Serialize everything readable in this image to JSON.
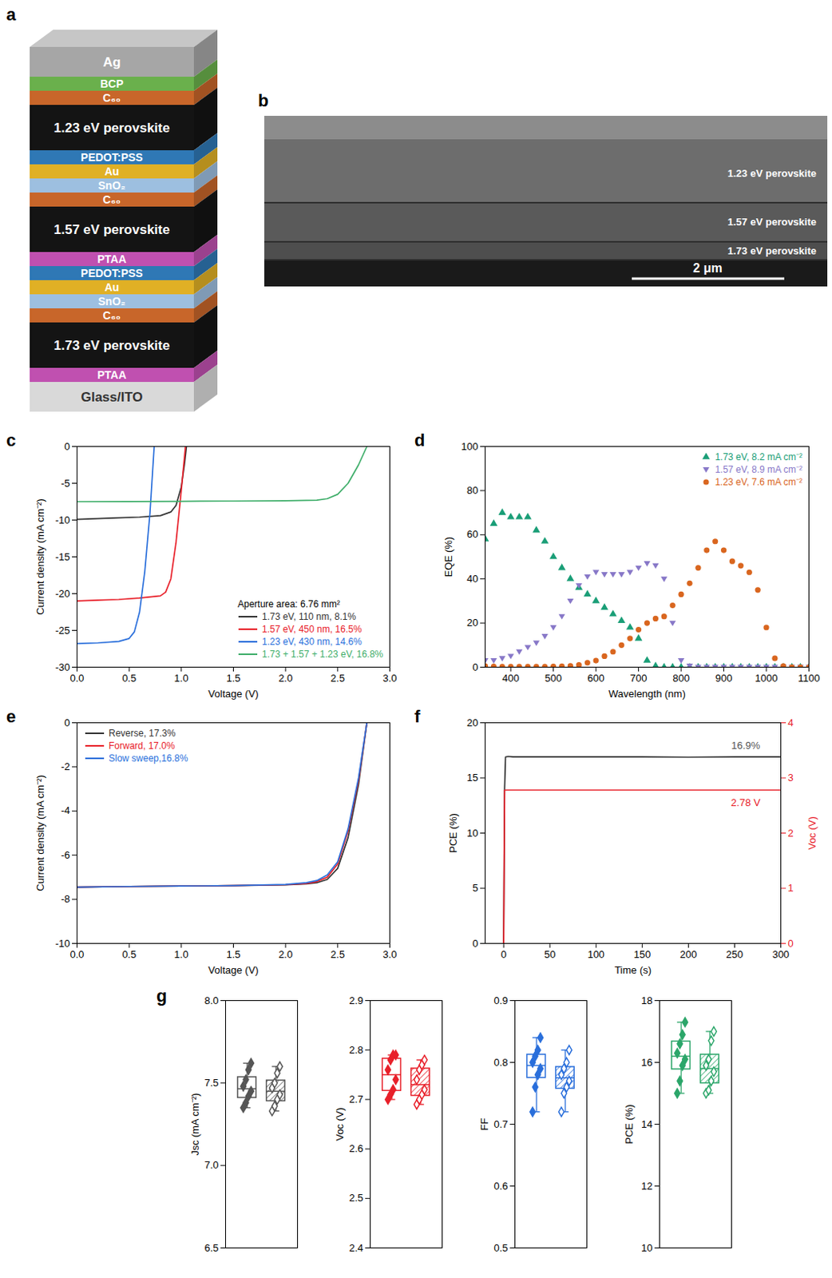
{
  "diagram_a": {
    "letter": "a",
    "layers": [
      {
        "label": "Ag",
        "color": "#a6a6a6"
      },
      {
        "label": "BCP",
        "color": "#6ab04c"
      },
      {
        "label": "C₆₀",
        "color": "#c8662a"
      },
      {
        "label": "1.23 eV perovskite",
        "color": "#141414"
      },
      {
        "label": "PEDOT:PSS",
        "color": "#2f78b5"
      },
      {
        "label": "Au",
        "color": "#e0b025"
      },
      {
        "label": "SnO₂",
        "color": "#9dbfe0"
      },
      {
        "label": "C₆₀",
        "color": "#c8662a"
      },
      {
        "label": "1.57 eV perovskite",
        "color": "#141414"
      },
      {
        "label": "PTAA",
        "color": "#c050b0"
      },
      {
        "label": "PEDOT:PSS",
        "color": "#2f78b5"
      },
      {
        "label": "Au",
        "color": "#e0b025"
      },
      {
        "label": "SnO₂",
        "color": "#9dbfe0"
      },
      {
        "label": "C₆₀",
        "color": "#c8662a"
      },
      {
        "label": "1.73 eV perovskite",
        "color": "#141414"
      },
      {
        "label": "PTAA",
        "color": "#c050b0"
      },
      {
        "label": "Glass/ITO",
        "color": "#d9d9d9"
      }
    ]
  },
  "image_b": {
    "letter": "b",
    "labels": [
      "1.23 eV perovskite",
      "1.57 eV perovskite",
      "1.73 eV perovskite"
    ],
    "scale_bar": "2 μm"
  },
  "chart_data": [
    {
      "letter": "c",
      "type": "line",
      "xlabel": "Voltage (V)",
      "ylabel": "Current density (mA cm⁻²)",
      "xlim": [
        0,
        3
      ],
      "xticks": [
        {
          "value": 0,
          "label": "0.0"
        },
        0.5,
        {
          "value": 1,
          "label": "1.0"
        },
        1.5,
        {
          "value": 2,
          "label": "2.0"
        },
        2.5,
        {
          "value": 3,
          "label": "3.0"
        }
      ],
      "ylim": [
        -30,
        0
      ],
      "yticks": [
        -30,
        -25,
        -20,
        -15,
        -10,
        -5,
        0
      ],
      "legend": "bottom-right",
      "legend_title": "Aperture area: 6.76 mm²",
      "series": [
        {
          "name": "1.73 eV, 110 nm, 8.1%",
          "color": "#333333",
          "x": [
            0,
            0.2,
            0.4,
            0.6,
            0.8,
            0.9,
            0.95,
            1.0,
            1.03,
            1.05
          ],
          "values": [
            -9.9,
            -9.8,
            -9.7,
            -9.6,
            -9.4,
            -8.9,
            -8.0,
            -5.5,
            -2.5,
            0
          ]
        },
        {
          "name": "1.57 eV, 450 nm, 16.5%",
          "color": "#e8202a",
          "x": [
            0,
            0.2,
            0.4,
            0.6,
            0.8,
            0.85,
            0.9,
            0.95,
            1.0,
            1.04
          ],
          "values": [
            -21.0,
            -20.9,
            -20.8,
            -20.6,
            -20.3,
            -19.8,
            -18.0,
            -13.0,
            -6.0,
            0
          ]
        },
        {
          "name": "1.23 eV, 430 nm, 14.6%",
          "color": "#2a6fdb",
          "x": [
            0,
            0.2,
            0.4,
            0.5,
            0.55,
            0.6,
            0.65,
            0.7,
            0.74
          ],
          "values": [
            -26.8,
            -26.7,
            -26.5,
            -26.1,
            -25.2,
            -22.5,
            -17.0,
            -9.0,
            0
          ]
        },
        {
          "name": "1.73 + 1.57 + 1.23 eV, 16.8%",
          "color": "#3fae6a",
          "x": [
            0,
            0.5,
            1,
            1.5,
            2,
            2.3,
            2.4,
            2.5,
            2.6,
            2.7,
            2.78
          ],
          "values": [
            -7.5,
            -7.48,
            -7.45,
            -7.42,
            -7.38,
            -7.3,
            -7.1,
            -6.5,
            -5.0,
            -2.5,
            0
          ]
        }
      ]
    },
    {
      "letter": "d",
      "type": "scatter",
      "xlabel": "Wavelength (nm)",
      "ylabel": "EQE (%)",
      "xlim": [
        340,
        1100
      ],
      "xticks": [
        400,
        500,
        600,
        700,
        800,
        900,
        1000,
        1100
      ],
      "ylim": [
        0,
        100
      ],
      "yticks": [
        0,
        20,
        40,
        60,
        80,
        100
      ],
      "legend": "top-right",
      "series": [
        {
          "name": "1.73 eV, 8.2 mA cm⁻²",
          "color": "#1a9e77",
          "marker": "triangle-up",
          "x": [
            340,
            360,
            380,
            400,
            420,
            440,
            460,
            480,
            500,
            520,
            540,
            560,
            580,
            600,
            620,
            640,
            660,
            680,
            700,
            720,
            740,
            760,
            780,
            800,
            820,
            840,
            860,
            880,
            900,
            920,
            940,
            960,
            980,
            1000,
            1020,
            1040,
            1060,
            1080,
            1100
          ],
          "values": [
            58,
            65,
            70,
            68,
            68,
            68,
            62,
            57,
            50,
            45,
            40,
            36,
            33,
            30,
            27,
            24,
            21,
            18,
            13,
            3,
            0.5,
            0,
            0,
            0,
            0,
            0,
            0,
            0,
            0,
            0,
            0,
            0,
            0,
            0,
            0,
            0,
            0,
            0,
            0
          ]
        },
        {
          "name": "1.57 eV, 8.9 mA cm⁻²",
          "color": "#8878c8",
          "marker": "triangle-down",
          "x": [
            340,
            360,
            380,
            400,
            420,
            440,
            460,
            480,
            500,
            520,
            540,
            560,
            580,
            600,
            620,
            640,
            660,
            680,
            700,
            720,
            740,
            760,
            780,
            800,
            820,
            840,
            860,
            880,
            900,
            920,
            940,
            960,
            980,
            1000,
            1020,
            1040,
            1060,
            1080,
            1100
          ],
          "values": [
            3,
            3,
            4,
            5,
            7,
            9,
            11,
            14,
            18,
            23,
            30,
            37,
            41,
            43,
            42,
            42,
            42,
            43,
            45,
            47,
            46,
            40,
            20,
            3,
            0.5,
            0,
            0,
            0,
            0,
            0,
            0,
            0,
            0,
            0,
            0,
            0,
            0,
            0,
            0
          ]
        },
        {
          "name": "1.23 eV, 7.6 mA cm⁻²",
          "color": "#d9661f",
          "marker": "circle",
          "x": [
            340,
            360,
            380,
            400,
            420,
            440,
            460,
            480,
            500,
            520,
            540,
            560,
            580,
            600,
            620,
            640,
            660,
            680,
            700,
            720,
            740,
            760,
            780,
            800,
            820,
            840,
            860,
            880,
            900,
            920,
            940,
            960,
            980,
            1000,
            1020,
            1040,
            1060,
            1080,
            1100
          ],
          "values": [
            0.5,
            0.3,
            0.2,
            0.2,
            0.2,
            0.2,
            0.2,
            0.2,
            0.3,
            0.4,
            0.6,
            1,
            2,
            3,
            5,
            7,
            10,
            13,
            17,
            20,
            22,
            23,
            28,
            33,
            38,
            45,
            53,
            57,
            53,
            48,
            46,
            43,
            35,
            18,
            4,
            0.5,
            0,
            0,
            0
          ]
        }
      ]
    },
    {
      "letter": "e",
      "type": "line",
      "xlabel": "Voltage (V)",
      "ylabel": "Current density (mA cm⁻²)",
      "xlim": [
        0,
        3
      ],
      "xticks": [
        {
          "value": 0,
          "label": "0.0"
        },
        0.5,
        {
          "value": 1,
          "label": "1.0"
        },
        1.5,
        {
          "value": 2,
          "label": "2.0"
        },
        2.5,
        {
          "value": 3,
          "label": "3.0"
        }
      ],
      "ylim": [
        -10,
        0
      ],
      "yticks": [
        -10,
        -8,
        -6,
        -4,
        -2,
        0
      ],
      "legend": "top-left",
      "series": [
        {
          "name": "Reverse, 17.3%",
          "color": "#333333",
          "x": [
            0,
            0.5,
            1,
            1.5,
            2,
            2.2,
            2.3,
            2.4,
            2.5,
            2.6,
            2.7,
            2.78
          ],
          "values": [
            -7.45,
            -7.42,
            -7.4,
            -7.38,
            -7.35,
            -7.3,
            -7.25,
            -7.1,
            -6.6,
            -5.2,
            -2.8,
            0
          ]
        },
        {
          "name": "Forward, 17.0%",
          "color": "#e8202a",
          "x": [
            0,
            0.5,
            1,
            1.5,
            2,
            2.2,
            2.3,
            2.4,
            2.5,
            2.6,
            2.7,
            2.78
          ],
          "values": [
            -7.45,
            -7.42,
            -7.4,
            -7.38,
            -7.34,
            -7.28,
            -7.2,
            -7.0,
            -6.4,
            -4.9,
            -2.6,
            0
          ]
        },
        {
          "name": "Slow sweep,16.8%",
          "color": "#2a6fdb",
          "x": [
            0,
            0.5,
            1,
            1.5,
            2,
            2.2,
            2.3,
            2.4,
            2.5,
            2.6,
            2.7,
            2.78
          ],
          "values": [
            -7.45,
            -7.42,
            -7.4,
            -7.38,
            -7.33,
            -7.25,
            -7.15,
            -6.9,
            -6.3,
            -4.8,
            -2.5,
            0
          ]
        }
      ]
    },
    {
      "letter": "f",
      "type": "line",
      "xlabel": "Time (s)",
      "ylabel": "PCE (%)",
      "y2label": "Voc (V)",
      "xlim": [
        -20,
        300
      ],
      "xticks": [
        0,
        50,
        100,
        150,
        200,
        250,
        300
      ],
      "ylim": [
        0,
        20
      ],
      "yticks": [
        0,
        5,
        10,
        15,
        20
      ],
      "y2lim": [
        0,
        4
      ],
      "y2ticks": [
        0,
        1,
        2,
        3,
        4
      ],
      "annotations": [
        {
          "text": "16.9%",
          "x": 262,
          "y": 17.9,
          "color": "#555555"
        },
        {
          "text": "2.78 V",
          "x": 262,
          "y": 2.55,
          "axis": "y2",
          "color": "#e8202a"
        }
      ],
      "series": [
        {
          "color": "#333333",
          "x": [
            0,
            1,
            2,
            5,
            10,
            50,
            100,
            150,
            200,
            250,
            300
          ],
          "values": [
            0,
            14,
            16.9,
            16.95,
            16.9,
            16.9,
            16.9,
            16.9,
            16.88,
            16.9,
            16.9
          ]
        },
        {
          "color": "#e8202a",
          "axis": "y2",
          "x": [
            0,
            1,
            2,
            5,
            10,
            50,
            100,
            150,
            200,
            250,
            300
          ],
          "values": [
            0,
            2.78,
            2.78,
            2.78,
            2.78,
            2.78,
            2.78,
            2.78,
            2.78,
            2.78,
            2.78
          ]
        }
      ]
    },
    {
      "letter": "g",
      "type": "box",
      "ylabel": "Jsc (mA cm⁻²)",
      "ylim": [
        6.5,
        8.0
      ],
      "yticks": [
        6.5,
        {
          "value": 7,
          "label": "7.0"
        },
        7.5,
        {
          "value": 8,
          "label": "8.0"
        }
      ],
      "tick_labels": "y",
      "series": [
        {
          "color": "#555555",
          "marker": "diamond",
          "values": [
            7.35,
            7.38,
            7.42,
            7.45,
            7.48,
            7.52,
            7.58,
            7.62
          ]
        },
        {
          "color": "#555555",
          "marker": "diamond_open",
          "values": [
            7.33,
            7.36,
            7.4,
            7.43,
            7.47,
            7.5,
            7.56,
            7.6
          ]
        }
      ]
    },
    {
      "type": "box",
      "ylabel": "Voc (V)",
      "ylim": [
        2.4,
        2.9
      ],
      "yticks": [
        2.4,
        2.5,
        2.6,
        2.7,
        2.8,
        2.9
      ],
      "tick_labels": "y",
      "series": [
        {
          "color": "#e8202a",
          "marker": "diamond",
          "values": [
            2.7,
            2.71,
            2.72,
            2.74,
            2.76,
            2.78,
            2.79,
            2.79
          ]
        },
        {
          "color": "#e8202a",
          "marker": "diamond_open",
          "values": [
            2.69,
            2.7,
            2.71,
            2.72,
            2.74,
            2.76,
            2.77,
            2.78
          ]
        }
      ]
    },
    {
      "type": "box",
      "ylabel": "FF",
      "ylim": [
        0.5,
        0.9
      ],
      "yticks": [
        0.5,
        0.6,
        0.7,
        0.8,
        0.9
      ],
      "tick_labels": "y",
      "series": [
        {
          "color": "#2a6fdb",
          "marker": "diamond",
          "values": [
            0.72,
            0.76,
            0.78,
            0.79,
            0.8,
            0.81,
            0.82,
            0.84
          ]
        },
        {
          "color": "#2a6fdb",
          "marker": "diamond_open",
          "values": [
            0.72,
            0.75,
            0.76,
            0.77,
            0.78,
            0.79,
            0.8,
            0.82
          ]
        }
      ]
    },
    {
      "type": "box",
      "ylabel": "PCE (%)",
      "ylim": [
        10,
        18
      ],
      "yticks": [
        10,
        12,
        14,
        16,
        18
      ],
      "tick_labels": "y",
      "series": [
        {
          "color": "#2ca66a",
          "marker": "diamond",
          "values": [
            15.0,
            15.4,
            15.9,
            16.1,
            16.3,
            16.6,
            16.9,
            17.3
          ]
        },
        {
          "color": "#2ca66a",
          "marker": "diamond_open",
          "values": [
            15.0,
            15.1,
            15.4,
            15.7,
            15.9,
            16.1,
            16.7,
            17.0
          ]
        }
      ]
    }
  ]
}
